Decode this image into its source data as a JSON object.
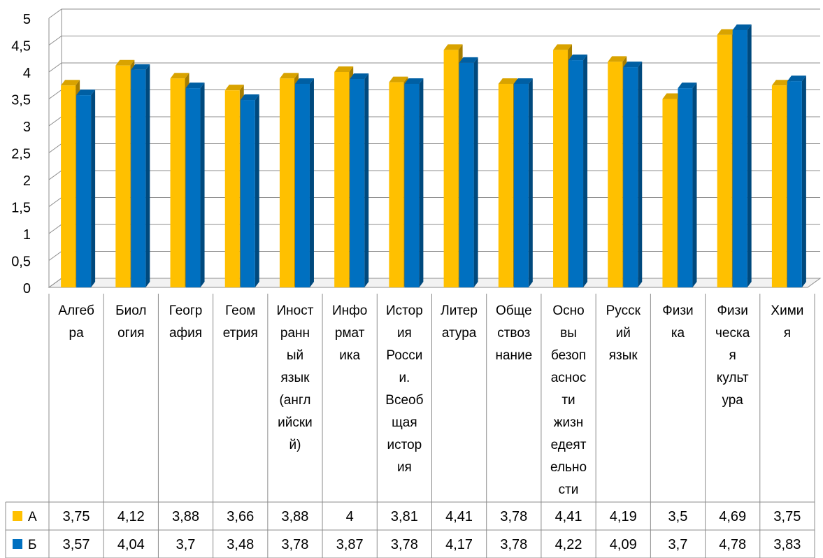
{
  "chart_data": {
    "type": "bar",
    "title": "",
    "xlabel": "",
    "ylabel": "",
    "ylim": [
      0,
      5
    ],
    "y_ticks": [
      "0",
      "0,5",
      "1",
      "1,5",
      "2",
      "2,5",
      "3",
      "3,5",
      "4",
      "4,5",
      "5"
    ],
    "grid": true,
    "legend": "in data table",
    "categories": [
      [
        "Алгеб",
        "ра"
      ],
      [
        "Биол",
        "огия"
      ],
      [
        "Геогр",
        "афия"
      ],
      [
        "Геом",
        "етрия"
      ],
      [
        "Иност",
        "ранн",
        "ый",
        "язык",
        "(англ",
        "ийски",
        "й)"
      ],
      [
        "Инфо",
        "рмат",
        "ика"
      ],
      [
        "Истор",
        "ия",
        "Росси",
        "и.",
        "Всеоб",
        "щая",
        "истор",
        "ия"
      ],
      [
        "Литер",
        "атура"
      ],
      [
        "Обще",
        "ствоз",
        "нание"
      ],
      [
        "Осно",
        "вы",
        "безоп",
        "аснос",
        "ти",
        "жизн",
        "едеят",
        "ельно",
        "сти"
      ],
      [
        "Русск",
        "ий",
        "язык"
      ],
      [
        "Физи",
        "ка"
      ],
      [
        "Физи",
        "ческа",
        "я",
        "культ",
        "ура"
      ],
      [
        "Хими",
        "я"
      ]
    ],
    "series": [
      {
        "name": "А",
        "color": "#FFC000",
        "values": [
          3.75,
          4.12,
          3.88,
          3.66,
          3.88,
          4,
          3.81,
          4.41,
          3.78,
          4.41,
          4.19,
          3.5,
          4.69,
          3.75
        ],
        "labels": [
          "3,75",
          "4,12",
          "3,88",
          "3,66",
          "3,88",
          "4",
          "3,81",
          "4,41",
          "3,78",
          "4,41",
          "4,19",
          "3,5",
          "4,69",
          "3,75"
        ]
      },
      {
        "name": "Б",
        "color": "#0070C0",
        "values": [
          3.57,
          4.04,
          3.7,
          3.48,
          3.78,
          3.87,
          3.78,
          4.17,
          3.78,
          4.22,
          4.09,
          3.7,
          4.78,
          3.83
        ],
        "labels": [
          "3,57",
          "4,04",
          "3,7",
          "3,48",
          "3,78",
          "3,87",
          "3,78",
          "4,17",
          "3,78",
          "4,22",
          "4,09",
          "3,7",
          "4,78",
          "3,83"
        ]
      }
    ]
  }
}
